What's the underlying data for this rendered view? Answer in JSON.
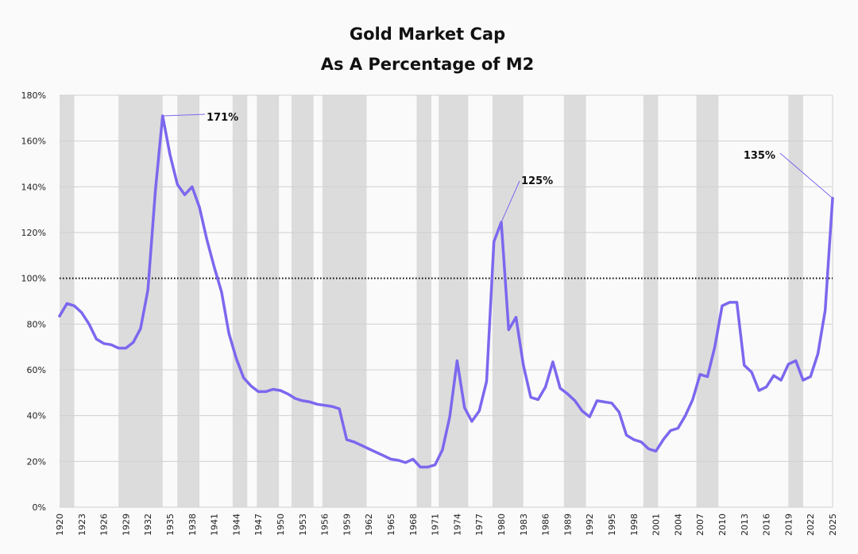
{
  "chart_data": {
    "type": "line",
    "title": "Gold Market Cap",
    "subtitle": "As A Percentage of M2",
    "xlabel": "",
    "ylabel": "",
    "xlim": [
      1920,
      2025
    ],
    "ylim": [
      0,
      180
    ],
    "grid": true,
    "legend": "none",
    "colors": {
      "line": "#7b68ee",
      "recession": "#dcdcdc",
      "grid": "#d0d0d0",
      "reference": "#000000",
      "background": "#fafafa"
    },
    "y_ticks": [
      0,
      20,
      40,
      60,
      80,
      100,
      120,
      140,
      160,
      180
    ],
    "y_tick_labels": [
      "0%",
      "20%",
      "40%",
      "60%",
      "80%",
      "100%",
      "120%",
      "140%",
      "160%",
      "180%"
    ],
    "x_ticks": [
      1920,
      1923,
      1926,
      1929,
      1932,
      1935,
      1938,
      1941,
      1944,
      1947,
      1950,
      1953,
      1956,
      1959,
      1962,
      1965,
      1968,
      1971,
      1974,
      1977,
      1980,
      1983,
      1986,
      1989,
      1992,
      1995,
      1998,
      2001,
      2004,
      2007,
      2010,
      2013,
      2016,
      2019,
      2022,
      2025
    ],
    "x_tick_labels": [
      "1920",
      "1923",
      "1926",
      "1929",
      "1932",
      "1935",
      "1938",
      "1941",
      "1944",
      "1947",
      "1950",
      "1953",
      "1956",
      "1959",
      "1962",
      "1965",
      "1968",
      "1971",
      "1974",
      "1977",
      "1980",
      "1983",
      "1986",
      "1989",
      "1992",
      "1995",
      "1998",
      "2001",
      "2004",
      "2007",
      "2010",
      "2013",
      "2016",
      "2019",
      "2022",
      "2025"
    ],
    "reference_line": 100,
    "recession_bands": [
      [
        1920,
        1922
      ],
      [
        1928,
        1934
      ],
      [
        1936,
        1939
      ],
      [
        1943.5,
        1945.5
      ],
      [
        1946.8,
        1949.8
      ],
      [
        1951.5,
        1954.5
      ],
      [
        1955.7,
        1961.7
      ],
      [
        1968.5,
        1970.5
      ],
      [
        1971.5,
        1975.5
      ],
      [
        1978.8,
        1983
      ],
      [
        1988.5,
        1991.5
      ],
      [
        1999.3,
        2001.3
      ],
      [
        2006.5,
        2009.5
      ],
      [
        2019,
        2021
      ]
    ],
    "series": [
      {
        "x": [
          1920,
          1921,
          1922,
          1923,
          1924,
          1925,
          1926,
          1927,
          1928,
          1929,
          1930,
          1931,
          1932,
          1933,
          1934,
          1935,
          1936,
          1937,
          1938,
          1939,
          1940,
          1941,
          1942,
          1943,
          1944,
          1945,
          1946,
          1947,
          1948,
          1949,
          1950,
          1951,
          1952,
          1953,
          1954,
          1955,
          1956,
          1957,
          1958,
          1959,
          1960,
          1961,
          1962,
          1963,
          1964,
          1965,
          1966,
          1967,
          1968,
          1969,
          1970,
          1971,
          1972,
          1973,
          1974,
          1975,
          1976,
          1977,
          1978,
          1979,
          1980,
          1981,
          1982,
          1983,
          1984,
          1985,
          1986,
          1987,
          1988,
          1989,
          1990,
          1991,
          1992,
          1993,
          1994,
          1995,
          1996,
          1997,
          1998,
          1999,
          2000,
          2001,
          2002,
          2003,
          2004,
          2005,
          2006,
          2007,
          2008,
          2009,
          2010,
          2011,
          2012,
          2013,
          2014,
          2015,
          2016,
          2017,
          2018,
          2019,
          2020,
          2021,
          2022,
          2023,
          2024,
          2025
        ],
        "values": [
          83.5,
          89,
          88,
          85,
          80,
          73.5,
          71.5,
          71,
          69.5,
          69.5,
          72,
          78,
          95,
          138,
          171,
          154,
          141,
          136.5,
          140,
          131,
          117,
          105,
          94,
          76,
          65,
          56.5,
          53,
          50.5,
          50.5,
          51.5,
          51,
          49.5,
          47.5,
          46.5,
          46,
          45,
          44.5,
          44,
          43,
          29.5,
          28.5,
          27,
          25.5,
          24,
          22.5,
          21,
          20.5,
          19.5,
          21,
          17.5,
          17.5,
          18.5,
          25,
          39.5,
          64,
          43.5,
          37.5,
          42,
          55,
          116,
          124.5,
          77.5,
          83,
          62,
          48,
          47,
          52.5,
          63.5,
          52,
          49.5,
          46.5,
          42,
          39.5,
          46.5,
          46,
          45.5,
          41.5,
          31.5,
          29.5,
          28.5,
          25.5,
          24.5,
          29.5,
          33.5,
          34.5,
          40,
          47,
          58,
          57,
          70,
          88,
          89.5,
          89.5,
          62,
          59,
          51,
          52.5,
          57.5,
          55.5,
          62.5,
          64,
          55.5,
          57,
          67,
          86,
          135
        ]
      }
    ],
    "annotations": [
      {
        "text": "171%",
        "x": 1934,
        "y": 171
      },
      {
        "text": "125%",
        "x": 1980,
        "y": 124.5
      },
      {
        "text": "135%",
        "x": 2025,
        "y": 135
      }
    ]
  }
}
